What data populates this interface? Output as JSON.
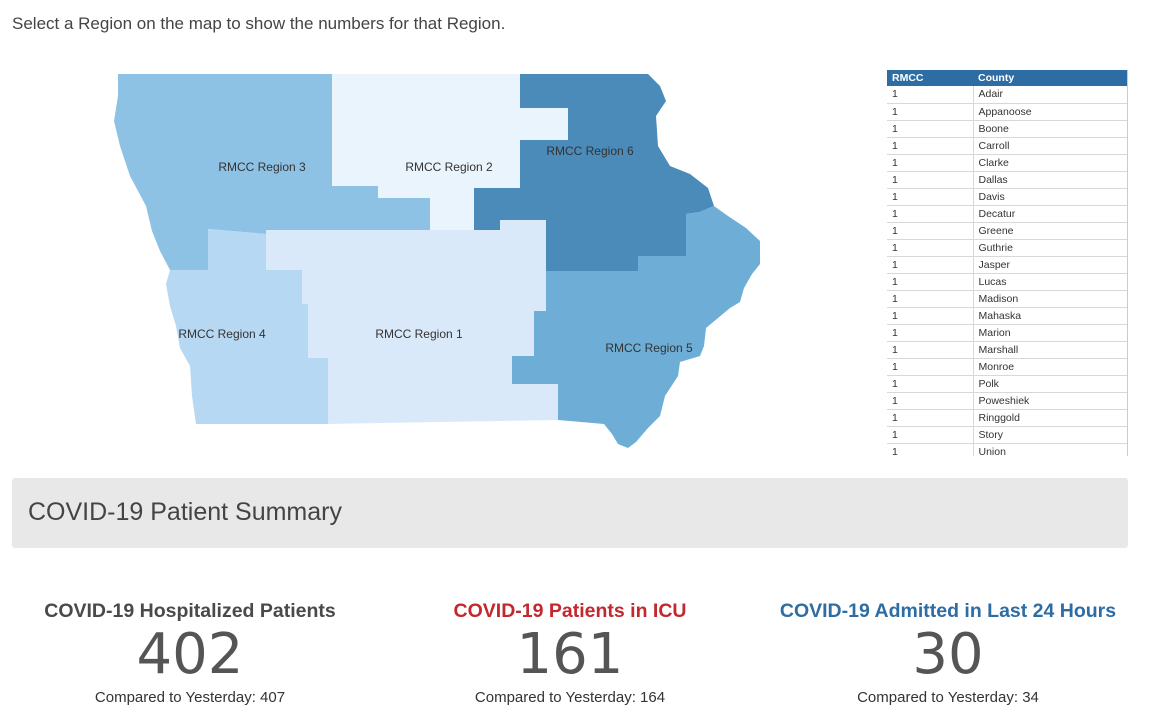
{
  "instruction": "Select a Region on the map to show the numbers for that Region.",
  "map": {
    "regions": [
      {
        "label": "RMCC Region 1",
        "color": "#dae9f9"
      },
      {
        "label": "RMCC Region 2",
        "color": "#eaf4fd"
      },
      {
        "label": "RMCC Region 3",
        "color": "#8ec2e4"
      },
      {
        "label": "RMCC Region 4",
        "color": "#b7d8f2"
      },
      {
        "label": "RMCC Region 5",
        "color": "#6eaed6"
      },
      {
        "label": "RMCC Region 6",
        "color": "#4a8bba"
      }
    ]
  },
  "county_table": {
    "headers": [
      "RMCC",
      "County"
    ],
    "rows": [
      [
        "1",
        "Adair"
      ],
      [
        "1",
        "Appanoose"
      ],
      [
        "1",
        "Boone"
      ],
      [
        "1",
        "Carroll"
      ],
      [
        "1",
        "Clarke"
      ],
      [
        "1",
        "Dallas"
      ],
      [
        "1",
        "Davis"
      ],
      [
        "1",
        "Decatur"
      ],
      [
        "1",
        "Greene"
      ],
      [
        "1",
        "Guthrie"
      ],
      [
        "1",
        "Jasper"
      ],
      [
        "1",
        "Lucas"
      ],
      [
        "1",
        "Madison"
      ],
      [
        "1",
        "Mahaska"
      ],
      [
        "1",
        "Marion"
      ],
      [
        "1",
        "Marshall"
      ],
      [
        "1",
        "Monroe"
      ],
      [
        "1",
        "Polk"
      ],
      [
        "1",
        "Poweshiek"
      ],
      [
        "1",
        "Ringgold"
      ],
      [
        "1",
        "Story"
      ],
      [
        "1",
        "Union"
      ]
    ]
  },
  "summary": {
    "title": "COVID-19 Patient Summary",
    "stats": [
      {
        "title": "COVID-19 Hospitalized Patients",
        "value": "402",
        "compare": "Compared to Yesterday: 407",
        "color": "#4a4a4a"
      },
      {
        "title": "COVID-19 Patients in ICU",
        "value": "161",
        "compare": "Compared to Yesterday: 164",
        "color": "#c2282d"
      },
      {
        "title": "COVID-19 Admitted in Last 24 Hours",
        "value": "30",
        "compare": "Compared to Yesterday: 34",
        "color": "#2e6da4"
      }
    ]
  }
}
